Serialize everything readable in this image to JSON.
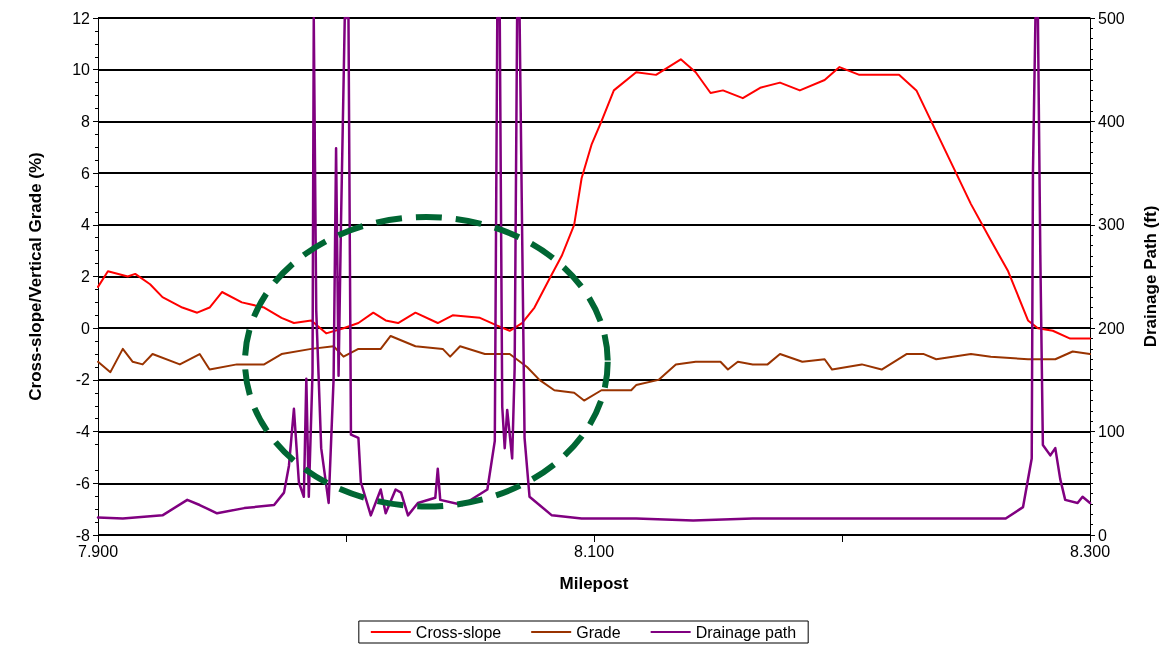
{
  "chart_data": {
    "type": "line",
    "xlabel": "Milepost",
    "ylabel": "Cross-slope/Vertical Grade (%)",
    "y2label": "Drainage Path (ft)",
    "xlim": [
      7.9,
      8.3
    ],
    "xticks": [
      {
        "value": 7.9,
        "label": "7.900"
      },
      {
        "value": 8.0,
        "label": null
      },
      {
        "value": 8.1,
        "label": "8.100"
      },
      {
        "value": 8.2,
        "label": null
      },
      {
        "value": 8.3,
        "label": "8.300"
      }
    ],
    "ylim": [
      -8,
      12
    ],
    "yticks": [
      -8,
      -6,
      -4,
      -2,
      0,
      2,
      4,
      6,
      8,
      10,
      12
    ],
    "y2lim": [
      0,
      500
    ],
    "y2ticks": [
      0,
      100,
      200,
      300,
      400,
      500
    ],
    "grid": "y",
    "legend": "bottom",
    "marker": "none",
    "line_style": "solid",
    "series": [
      {
        "name": "Cross-slope",
        "color": "#ff0000",
        "x": [
          7.9,
          7.904,
          7.912,
          7.915,
          7.921,
          7.926,
          7.934,
          7.94,
          7.945,
          7.95,
          7.958,
          7.967,
          7.974,
          7.979,
          7.986,
          7.992,
          7.999,
          8.005,
          8.011,
          8.016,
          8.021,
          8.028,
          8.037,
          8.043,
          8.054,
          8.061,
          8.066,
          8.071,
          8.076,
          8.082,
          8.087,
          8.092,
          8.095,
          8.099,
          8.103,
          8.108,
          8.117,
          8.125,
          8.135,
          8.141,
          8.147,
          8.152,
          8.16,
          8.167,
          8.175,
          8.183,
          8.193,
          8.199,
          8.207,
          8.223,
          8.23,
          8.236,
          8.245,
          8.252,
          8.26,
          8.267,
          8.275,
          8.279,
          8.285,
          8.292,
          8.3
        ],
        "values": [
          1.6,
          2.2,
          2.0,
          2.1,
          1.7,
          1.2,
          0.8,
          0.6,
          0.8,
          1.4,
          1.0,
          0.8,
          0.4,
          0.2,
          0.3,
          -0.2,
          0.0,
          0.2,
          0.6,
          0.3,
          0.2,
          0.6,
          0.2,
          0.5,
          0.4,
          0.1,
          -0.1,
          0.2,
          0.8,
          1.9,
          2.8,
          4.0,
          5.8,
          7.1,
          8.0,
          9.2,
          9.9,
          9.8,
          10.4,
          9.9,
          9.1,
          9.2,
          8.9,
          9.3,
          9.5,
          9.2,
          9.6,
          10.1,
          9.8,
          9.8,
          9.2,
          8.0,
          6.2,
          4.8,
          3.4,
          2.2,
          0.3,
          0.0,
          -0.1,
          -0.4,
          -0.4
        ]
      },
      {
        "name": "Grade",
        "color": "#993300",
        "x": [
          7.9,
          7.905,
          7.91,
          7.914,
          7.918,
          7.922,
          7.933,
          7.941,
          7.945,
          7.956,
          7.967,
          7.974,
          7.986,
          7.995,
          7.999,
          8.005,
          8.014,
          8.018,
          8.028,
          8.039,
          8.042,
          8.046,
          8.056,
          8.066,
          8.073,
          8.078,
          8.084,
          8.092,
          8.096,
          8.103,
          8.115,
          8.117,
          8.126,
          8.133,
          8.141,
          8.151,
          8.154,
          8.158,
          8.164,
          8.17,
          8.175,
          8.184,
          8.193,
          8.196,
          8.208,
          8.216,
          8.226,
          8.233,
          8.238,
          8.252,
          8.26,
          8.275,
          8.286,
          8.293,
          8.3
        ],
        "values": [
          -1.3,
          -1.7,
          -0.8,
          -1.3,
          -1.4,
          -1.0,
          -1.4,
          -1.0,
          -1.6,
          -1.4,
          -1.4,
          -1.0,
          -0.8,
          -0.7,
          -1.1,
          -0.8,
          -0.8,
          -0.3,
          -0.7,
          -0.8,
          -1.1,
          -0.7,
          -1.0,
          -1.0,
          -1.5,
          -2.0,
          -2.4,
          -2.5,
          -2.8,
          -2.4,
          -2.4,
          -2.2,
          -2.0,
          -1.4,
          -1.3,
          -1.3,
          -1.6,
          -1.3,
          -1.4,
          -1.4,
          -1.0,
          -1.3,
          -1.2,
          -1.6,
          -1.4,
          -1.6,
          -1.0,
          -1.0,
          -1.2,
          -1.0,
          -1.1,
          -1.2,
          -1.2,
          -0.9,
          -1.0
        ]
      },
      {
        "name": "Drainage path",
        "color": "#800080",
        "axis": "y2",
        "x": [
          7.9,
          7.91,
          7.926,
          7.936,
          7.941,
          7.948,
          7.959,
          7.971,
          7.975,
          7.977,
          7.979,
          7.981,
          7.983,
          7.984,
          7.985,
          7.9865,
          7.987,
          7.988,
          7.99,
          7.993,
          7.995,
          7.996,
          7.997,
          7.998,
          7.9995,
          8.001,
          8.002,
          8.005,
          8.006,
          8.01,
          8.014,
          8.016,
          8.02,
          8.0222,
          8.025,
          8.029,
          8.036,
          8.037,
          8.038,
          8.047,
          8.057,
          8.06,
          8.061,
          8.062,
          8.063,
          8.064,
          8.065,
          8.067,
          8.068,
          8.069,
          8.07,
          8.072,
          8.074,
          8.083,
          8.095,
          8.117,
          8.14,
          8.164,
          8.211,
          8.266,
          8.273,
          8.275,
          8.2765,
          8.277,
          8.278,
          8.279,
          8.28,
          8.281,
          8.284,
          8.286,
          8.288,
          8.29,
          8.295,
          8.297,
          8.3
        ],
        "values": [
          17,
          16,
          19,
          34,
          29,
          21,
          26,
          29,
          41,
          67,
          122,
          51,
          37,
          151,
          37,
          157,
          500,
          217,
          84,
          31,
          151,
          374,
          154,
          304,
          500,
          500,
          97,
          94,
          51,
          19,
          44,
          21,
          44,
          41,
          19,
          31,
          36,
          64,
          34,
          29,
          44,
          91,
          500,
          500,
          124,
          84,
          121,
          74,
          161,
          500,
          500,
          94,
          37,
          19,
          16,
          16,
          14,
          16,
          16,
          16,
          27,
          54,
          74,
          351,
          500,
          500,
          264,
          87,
          77,
          84,
          54,
          34,
          31,
          37,
          31
        ]
      }
    ]
  }
}
